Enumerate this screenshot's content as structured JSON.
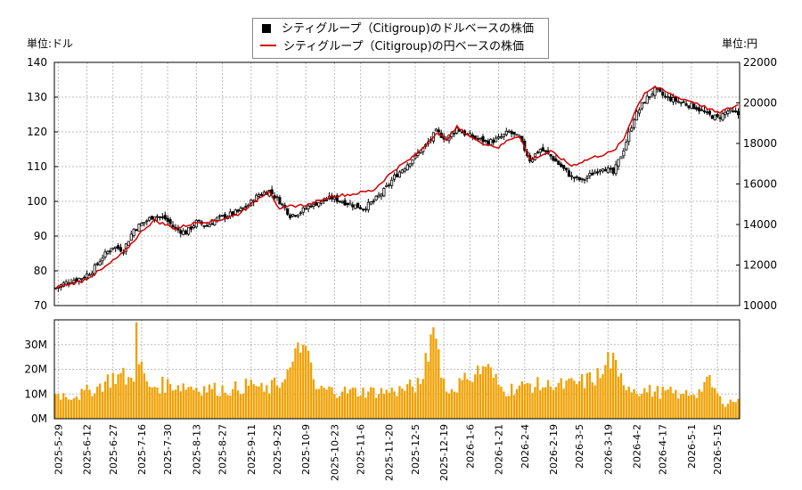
{
  "chart_data": [
    {
      "type": "candlestick+line",
      "legend": {
        "usd_label": "シティグループ（Citigroup)のドルベースの株価",
        "jpy_label": "シティグループ（Citigroup)の円ベースの株価",
        "placement": "top-center"
      },
      "left_unit_label": "単位:ドル",
      "right_unit_label": "単位:円",
      "y_left": {
        "min": 70,
        "max": 140,
        "ticks": [
          70,
          80,
          90,
          100,
          110,
          120,
          130,
          140
        ]
      },
      "y_right": {
        "min": 10000,
        "max": 22000,
        "ticks": [
          10000,
          12000,
          14000,
          16000,
          18000,
          20000,
          22000
        ]
      },
      "grid": true,
      "x_dates": [
        "2025-5-29",
        "2025-6-12",
        "2025-6-27",
        "2025-7-16",
        "2025-7-30",
        "2025-8-13",
        "2025-8-27",
        "2025-9-11",
        "2025-9-25",
        "2025-10-9",
        "2025-10-23",
        "2025-11-6",
        "2025-11-20",
        "2025-12-5",
        "2025-12-19",
        "2026-1-6",
        "2026-1-21",
        "2026-2-4",
        "2026-2-19",
        "2026-3-5",
        "2026-3-19",
        "2026-4-2",
        "2026-4-17",
        "2026-5-1",
        "2026-5-15"
      ],
      "usd_close_anchors": [
        [
          0,
          75
        ],
        [
          5,
          77
        ],
        [
          10,
          78
        ],
        [
          14,
          80
        ],
        [
          18,
          84
        ],
        [
          22,
          87
        ],
        [
          26,
          86
        ],
        [
          30,
          92
        ],
        [
          34,
          94
        ],
        [
          38,
          96
        ],
        [
          42,
          95
        ],
        [
          46,
          92
        ],
        [
          50,
          91
        ],
        [
          54,
          94
        ],
        [
          58,
          93
        ],
        [
          62,
          95
        ],
        [
          66,
          96
        ],
        [
          70,
          97
        ],
        [
          74,
          99
        ],
        [
          78,
          102
        ],
        [
          82,
          103
        ],
        [
          86,
          100
        ],
        [
          90,
          96
        ],
        [
          94,
          97
        ],
        [
          98,
          99
        ],
        [
          102,
          100
        ],
        [
          106,
          101
        ],
        [
          110,
          100
        ],
        [
          114,
          99
        ],
        [
          118,
          98
        ],
        [
          122,
          100
        ],
        [
          126,
          103
        ],
        [
          130,
          107
        ],
        [
          134,
          110
        ],
        [
          138,
          113
        ],
        [
          142,
          116
        ],
        [
          146,
          120
        ],
        [
          150,
          118
        ],
        [
          154,
          121
        ],
        [
          158,
          119
        ],
        [
          162,
          118
        ],
        [
          166,
          117
        ],
        [
          170,
          118
        ],
        [
          174,
          120
        ],
        [
          178,
          118
        ],
        [
          182,
          112
        ],
        [
          186,
          115
        ],
        [
          190,
          113
        ],
        [
          194,
          110
        ],
        [
          198,
          107
        ],
        [
          202,
          106
        ],
        [
          206,
          108
        ],
        [
          210,
          110
        ],
        [
          214,
          108
        ],
        [
          218,
          115
        ],
        [
          222,
          124
        ],
        [
          226,
          129
        ],
        [
          230,
          132
        ],
        [
          234,
          130
        ],
        [
          238,
          129
        ],
        [
          242,
          128
        ],
        [
          246,
          127
        ],
        [
          250,
          125
        ],
        [
          254,
          124
        ],
        [
          258,
          126
        ],
        [
          262,
          125
        ]
      ],
      "jpy_close_anchors": [
        [
          0,
          10900
        ],
        [
          10,
          11200
        ],
        [
          18,
          11800
        ],
        [
          26,
          12600
        ],
        [
          34,
          13800
        ],
        [
          38,
          14200
        ],
        [
          46,
          13800
        ],
        [
          54,
          14100
        ],
        [
          62,
          14200
        ],
        [
          70,
          14500
        ],
        [
          78,
          15300
        ],
        [
          82,
          15700
        ],
        [
          86,
          14700
        ],
        [
          90,
          14900
        ],
        [
          98,
          15000
        ],
        [
          106,
          15400
        ],
        [
          114,
          15500
        ],
        [
          122,
          15700
        ],
        [
          130,
          16700
        ],
        [
          138,
          17400
        ],
        [
          146,
          18500
        ],
        [
          150,
          18200
        ],
        [
          154,
          18800
        ],
        [
          162,
          18100
        ],
        [
          170,
          17800
        ],
        [
          174,
          18200
        ],
        [
          178,
          18400
        ],
        [
          182,
          17200
        ],
        [
          190,
          17600
        ],
        [
          198,
          16900
        ],
        [
          206,
          17300
        ],
        [
          214,
          17600
        ],
        [
          218,
          18200
        ],
        [
          222,
          19500
        ],
        [
          226,
          20500
        ],
        [
          230,
          20800
        ],
        [
          238,
          20300
        ],
        [
          246,
          20000
        ],
        [
          254,
          19500
        ],
        [
          262,
          19900
        ]
      ],
      "volume_ticks": [
        "0M",
        "10M",
        "20M",
        "30M"
      ],
      "volume_max": 40,
      "volume_anchors": [
        [
          0,
          10
        ],
        [
          8,
          9
        ],
        [
          16,
          13
        ],
        [
          24,
          18
        ],
        [
          30,
          15
        ],
        [
          31,
          39
        ],
        [
          32,
          22
        ],
        [
          36,
          13
        ],
        [
          44,
          14
        ],
        [
          52,
          13
        ],
        [
          60,
          12
        ],
        [
          68,
          12
        ],
        [
          76,
          14
        ],
        [
          80,
          11
        ],
        [
          88,
          16
        ],
        [
          95,
          30
        ],
        [
          100,
          12
        ],
        [
          110,
          11
        ],
        [
          120,
          11
        ],
        [
          130,
          11
        ],
        [
          140,
          14
        ],
        [
          145,
          37
        ],
        [
          150,
          11
        ],
        [
          158,
          16
        ],
        [
          165,
          21
        ],
        [
          172,
          11
        ],
        [
          180,
          14
        ],
        [
          190,
          13
        ],
        [
          200,
          14
        ],
        [
          210,
          18
        ],
        [
          212,
          27
        ],
        [
          216,
          17
        ],
        [
          222,
          12
        ],
        [
          230,
          11
        ],
        [
          240,
          10
        ],
        [
          248,
          11
        ],
        [
          250,
          17
        ],
        [
          256,
          6
        ],
        [
          262,
          8
        ]
      ]
    }
  ]
}
